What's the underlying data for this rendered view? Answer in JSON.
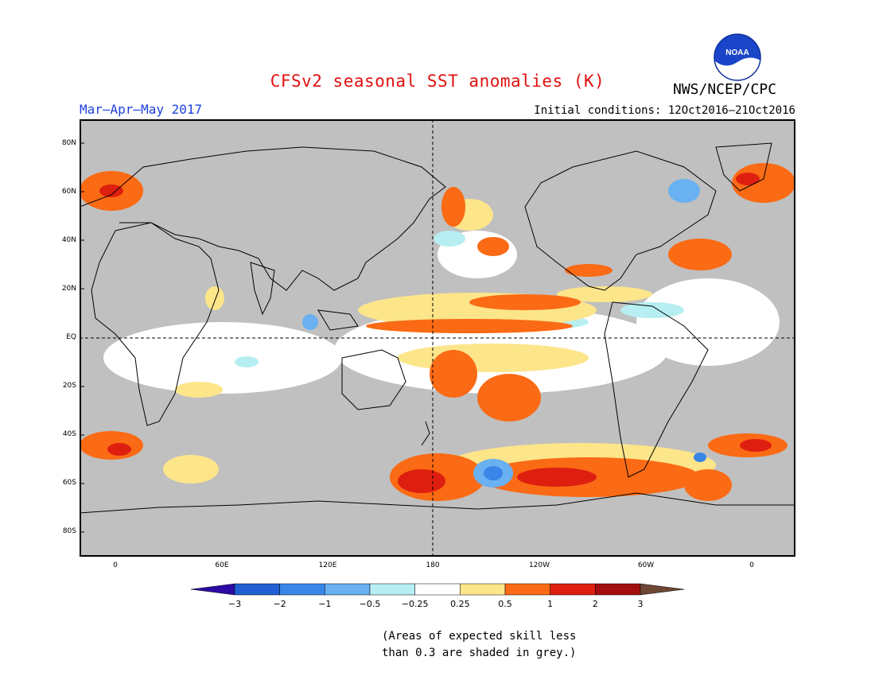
{
  "title": "CFSv2 seasonal SST anomalies (K)",
  "season": "Mar–Apr–May 2017",
  "initial_conditions": "Initial conditions: 12Oct2016–21Oct2016",
  "agency": "NWS/NCEP/CPC",
  "logo_text": "NOAA",
  "note": [
    "(Areas of expected skill less",
    "than 0.3 are shaded in grey.)"
  ],
  "latitude_labels": [
    "80N",
    "60N",
    "40N",
    "20N",
    "EQ",
    "20S",
    "40S",
    "60S",
    "80S"
  ],
  "longitude_labels": [
    "0",
    "60E",
    "120E",
    "180",
    "120W",
    "60W",
    "0"
  ],
  "colorbar": {
    "labels": [
      "−3",
      "−2",
      "−1",
      "−0.5",
      "−0.25",
      "0.25",
      "0.5",
      "1",
      "2",
      "3"
    ],
    "colors": [
      "#2b0aa6",
      "#1f5fd1",
      "#3a85e8",
      "#69b1f0",
      "#b6eef2",
      "#ffffff",
      "#fde58a",
      "#fb6a14",
      "#de1f10",
      "#a30d0d",
      "#6e4634"
    ]
  },
  "colors": {
    "grey_mask": "#c0c0c0",
    "title_red": "#e01010",
    "subtitle_blue": "#2040e0"
  }
}
